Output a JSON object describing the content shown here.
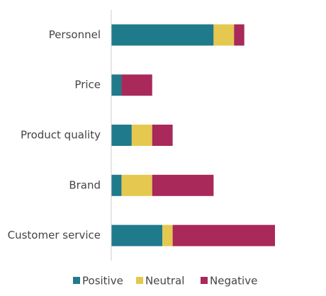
{
  "chart_data": {
    "type": "stacked-bar-horizontal",
    "categories": [
      "Personnel",
      "Price",
      "Product quality",
      "Brand",
      "Customer service"
    ],
    "series": [
      {
        "name": "Positive",
        "color": "#1f7a8c",
        "values": [
          10,
          1,
          2,
          1,
          5
        ]
      },
      {
        "name": "Neutral",
        "color": "#e5c84f",
        "values": [
          2,
          0,
          2,
          3,
          1
        ]
      },
      {
        "name": "Negative",
        "color": "#a8295a",
        "values": [
          1,
          3,
          2,
          6,
          10
        ]
      }
    ],
    "xlim": [
      0,
      16
    ],
    "legend": "bottom"
  }
}
